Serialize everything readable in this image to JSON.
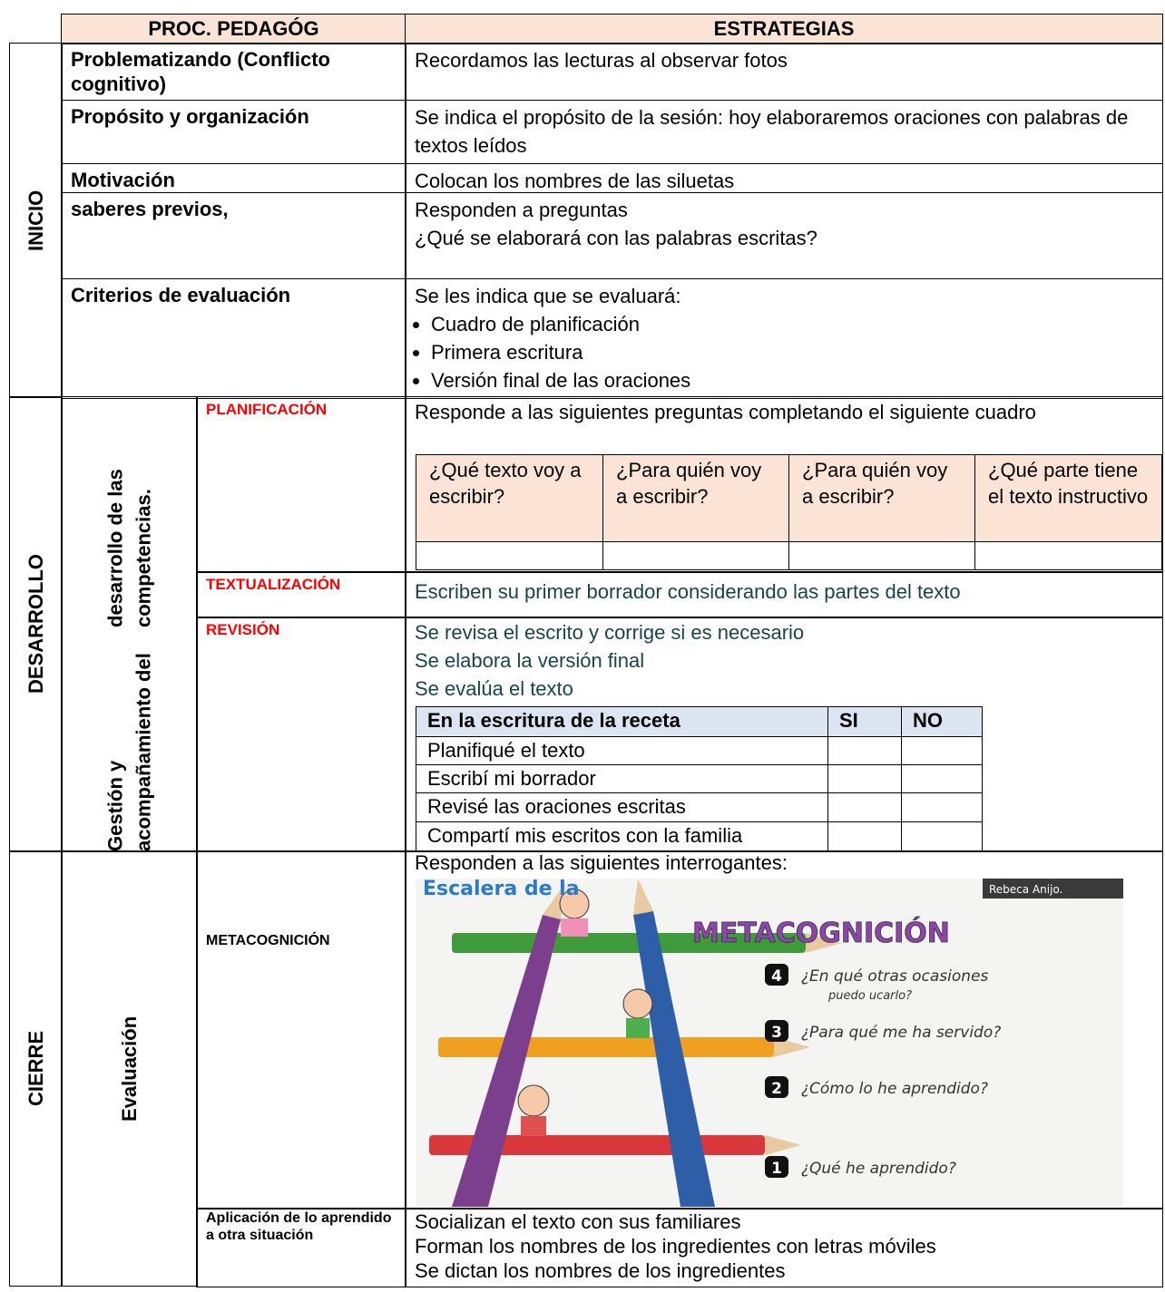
{
  "header": {
    "proc": "PROC. PEDAGÓG",
    "estrategias": "ESTRATEGIAS"
  },
  "inicio": {
    "label": "INICIO",
    "rows": [
      {
        "proc": "Problematizando (Conflicto cognitivo)",
        "lines": [
          "Recordamos las lecturas al observar fotos"
        ]
      },
      {
        "proc": "Propósito  y organización",
        "lines": [
          "Se indica el propósito de la sesión: hoy elaboraremos oraciones con palabras  de textos leídos"
        ]
      },
      {
        "proc": "Motivación",
        "lines": [
          "Colocan los nombres de las siluetas"
        ]
      },
      {
        "proc": "saberes previos,",
        "lines": [
          "Responden a preguntas",
          "¿Qué se elaborará con las palabras   escritas?"
        ]
      },
      {
        "proc": "Criterios de  evaluación",
        "lines": [
          "Se les indica que se evaluará:"
        ],
        "bullets": [
          "Cuadro de planificación",
          "Primera escritura",
          "Versión final de las oraciones"
        ]
      }
    ]
  },
  "desarrollo": {
    "label": "DESARROLLO",
    "sublabel": [
      "Gestión y acompañamiento del",
      "desarrollo de las competencias."
    ],
    "planificacion": {
      "label": "PLANIFICACIÓN",
      "lines": [
        "Responde a las siguientes preguntas completando el siguiente cuadro"
      ],
      "table_headers": [
        "¿Qué texto voy a escribir?",
        "¿Para quién voy a escribir?",
        "¿Para quién voy a escribir?",
        "¿Qué parte tiene el texto instructivo"
      ]
    },
    "textualizacion": {
      "label": "TEXTUALIZACIÓN",
      "lines": [
        "Escriben su primer borrador considerando las partes del texto"
      ]
    },
    "revision": {
      "label": "REVISIÓN",
      "lines": [
        "Se revisa el escrito y corrige si es necesario",
        "Se elabora la versión final",
        "Se evalúa el texto"
      ],
      "table": {
        "headers": [
          "En la escritura de la receta",
          "SI",
          "NO"
        ],
        "rows": [
          "Planifiqué el texto",
          "Escribí mi borrador",
          "Revisé  las oraciones escritas",
          "Compartí mis escritos con la familia"
        ]
      }
    }
  },
  "cierre": {
    "label": "CIERRE",
    "sublabel": "Evaluación",
    "metacognicion": {
      "label": "METACOGNICIÓN",
      "lines": [
        "Responden a las siguientes interrogantes:"
      ],
      "image": {
        "title_1": "Escalera de la",
        "title_2": "METACOGNICIÓN",
        "credit": "Rebeca Anijo.",
        "steps": [
          {
            "num": "4",
            "text": [
              "¿En qué otras ocasiones",
              "puedo ucarlo?"
            ]
          },
          {
            "num": "3",
            "text": [
              "¿Para qué me ha servido?"
            ]
          },
          {
            "num": "2",
            "text": [
              "¿Cómo lo he aprendido?"
            ]
          },
          {
            "num": "1",
            "text": [
              "¿Qué he aprendido?"
            ]
          }
        ]
      }
    },
    "aplicacion": {
      "label": "Aplicación de lo aprendido a otra situación",
      "lines": [
        "Socializan  el texto con sus familiares",
        "Forman los nombres de los ingredientes con letras móviles",
        "Se dictan los nombres de los ingredientes"
      ]
    }
  }
}
